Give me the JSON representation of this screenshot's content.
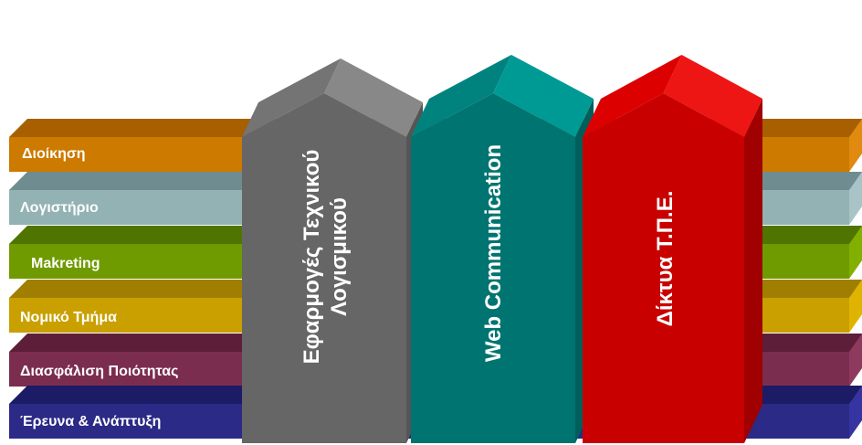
{
  "bars": [
    {
      "label": "Διοίκηση",
      "front": "#cc7a00",
      "top": "#a85f00",
      "side": "#e08a10"
    },
    {
      "label": "Λογιστήριο",
      "front": "#93b2b4",
      "top": "#6f8d90",
      "side": "#a9c4c6"
    },
    {
      "label": "Makreting",
      "front": "#6f9b00",
      "top": "#4f7400",
      "side": "#82b000"
    },
    {
      "label": "Νομικό Τμήμα",
      "front": "#c9a000",
      "top": "#a07e00",
      "side": "#dfb400"
    },
    {
      "label": "Διασφάλιση Ποιότητας",
      "front": "#7b2d4f",
      "top": "#5c1e39",
      "side": "#8d3a5e"
    },
    {
      "label": "Έρευνα & Ανάπτυξη",
      "front": "#2b2a86",
      "top": "#1c1b65",
      "side": "#3634a0"
    }
  ],
  "pillars": [
    {
      "label": "Εφαρμογές Τεχνικού Λογισμικού",
      "front": "#666666",
      "side": "#555555",
      "roof": "#747474",
      "roofside": "#888888"
    },
    {
      "label": "Web Communication",
      "front": "#007470",
      "side": "#005e5b",
      "roof": "#00837e",
      "roofside": "#009a94"
    },
    {
      "label": "Δίκτυα Τ.Π.Ε.",
      "front": "#c80000",
      "side": "#a00000",
      "roof": "#dd0000",
      "roofside": "#ee1515"
    }
  ]
}
